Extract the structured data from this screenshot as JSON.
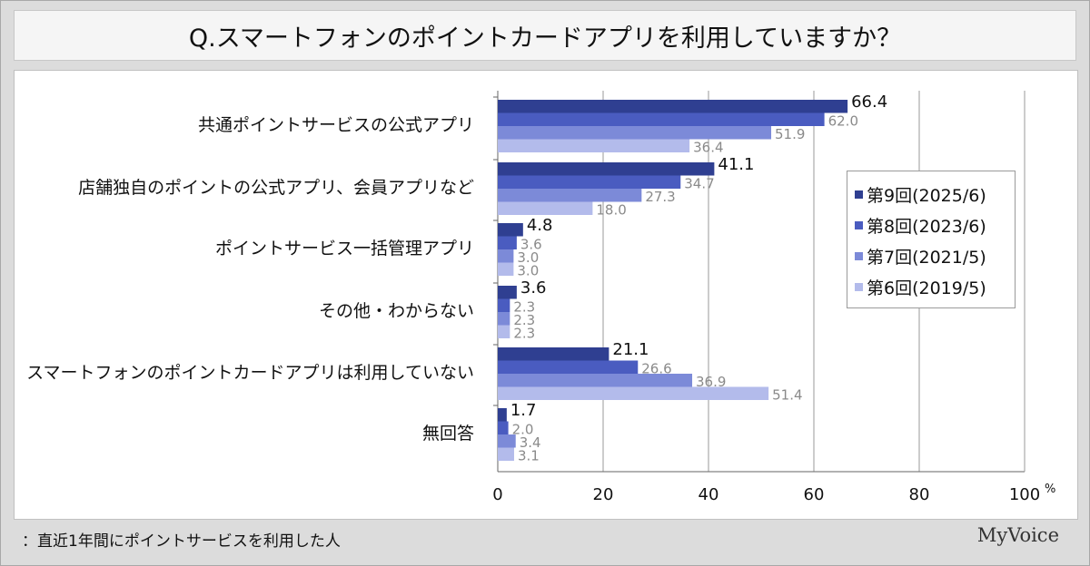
{
  "title": "Q.スマートフォンのポイントカードアプリを利用していますか？",
  "footnote": "：直近1年間にポイントサービスを利用した人",
  "brand": "MyVoice",
  "chart_data": {
    "type": "bar",
    "orientation": "horizontal",
    "categories": [
      "共通ポイントサービスの公式アプリ",
      "店舗独自のポイントの公式アプリ、会員アプリなど",
      "ポイントサービス一括管理アプリ",
      "その他・わからない",
      "スマートフォンのポイントカードアプリは利用していない",
      "無回答"
    ],
    "series": [
      {
        "name": "第9回(2025/6)",
        "color": "#2f3f91",
        "values": [
          66.4,
          41.1,
          4.8,
          3.6,
          21.1,
          1.7
        ]
      },
      {
        "name": "第8回(2023/6)",
        "color": "#4a5cc0",
        "values": [
          62.0,
          34.7,
          3.6,
          2.3,
          26.6,
          2.0
        ]
      },
      {
        "name": "第7回(2021/5)",
        "color": "#7c8ad8",
        "values": [
          51.9,
          27.3,
          3.0,
          2.3,
          36.9,
          3.4
        ]
      },
      {
        "name": "第6回(2019/5)",
        "color": "#b3bbeb",
        "values": [
          36.4,
          18.0,
          3.0,
          2.3,
          51.4,
          3.1
        ]
      }
    ],
    "xlim": [
      0,
      100
    ],
    "xticks": [
      "0",
      "20",
      "40",
      "60",
      "80",
      "100"
    ],
    "unit": "%",
    "grid": true,
    "legend_position": "right"
  }
}
